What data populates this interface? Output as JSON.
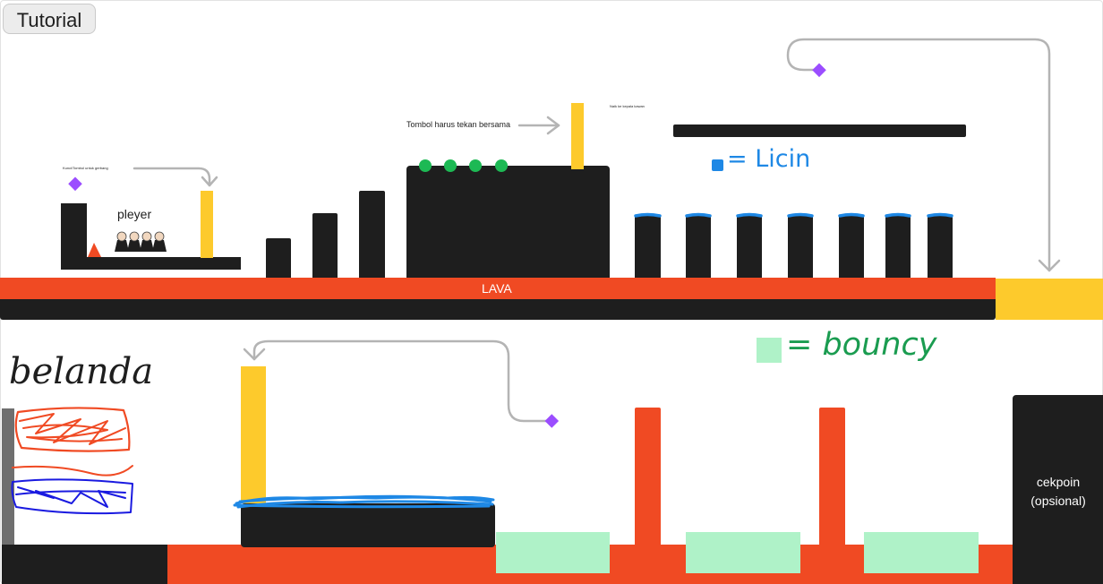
{
  "toolbar": {
    "tutorial_label": "Tutorial"
  },
  "level1": {
    "key_note": "Kunci/Tombol untuk gerbang",
    "player_label": "pleyer",
    "button_note": "Tombol harus tekan bersama",
    "climb_note": "Naik ke kepala kawan",
    "slippery_legend": "= Licin",
    "lava_label": "LAVA"
  },
  "level2": {
    "bouncy_legend": "= bouncy",
    "handwritten_label": "belanda",
    "checkpoint_label": "cekpoin (opsional)"
  },
  "colors": {
    "platform": "#1e1e1e",
    "lava": "#f04a23",
    "gate": "#fdca2c",
    "slippery": "#1e88e5",
    "bouncy": "#aff2c8",
    "key": "#9b4dff",
    "pressure_button": "#1db954",
    "arrow": "#b4b4b4"
  },
  "icons": {
    "key": "diamond-icon",
    "spike": "triangle-icon",
    "players": "character-icon"
  }
}
